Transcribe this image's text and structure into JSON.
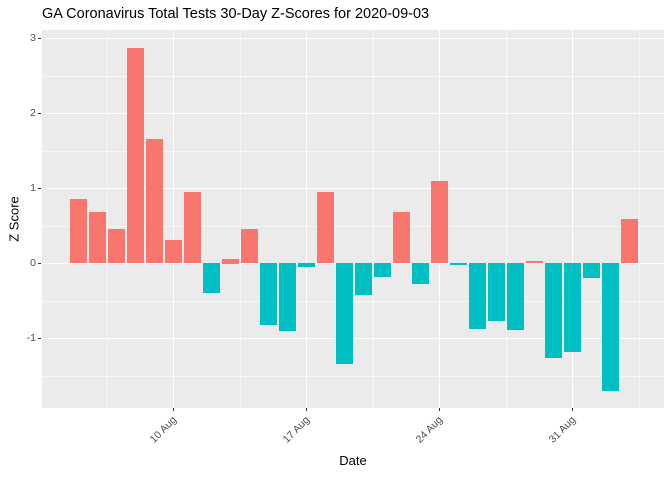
{
  "chart_data": {
    "type": "bar",
    "title": "GA Coronavirus Total Tests 30-Day Z-Scores for 2020-09-03",
    "xlabel": "Date",
    "ylabel": "Z Score",
    "x": [
      "2020-08-05",
      "2020-08-06",
      "2020-08-07",
      "2020-08-08",
      "2020-08-09",
      "2020-08-10",
      "2020-08-11",
      "2020-08-12",
      "2020-08-13",
      "2020-08-14",
      "2020-08-15",
      "2020-08-16",
      "2020-08-17",
      "2020-08-18",
      "2020-08-19",
      "2020-08-20",
      "2020-08-21",
      "2020-08-22",
      "2020-08-23",
      "2020-08-24",
      "2020-08-25",
      "2020-08-26",
      "2020-08-27",
      "2020-08-28",
      "2020-08-29",
      "2020-08-30",
      "2020-08-31",
      "2020-09-01",
      "2020-09-02",
      "2020-09-03"
    ],
    "values": [
      0.85,
      0.68,
      0.45,
      2.87,
      1.65,
      0.31,
      0.95,
      -0.4,
      0.06,
      0.45,
      -0.83,
      -0.91,
      -0.05,
      0.95,
      -1.34,
      -0.43,
      -0.19,
      0.68,
      -0.28,
      1.09,
      -0.03,
      -0.88,
      -0.77,
      -0.89,
      0.03,
      -1.27,
      -1.18,
      -0.2,
      -1.7,
      0.59
    ],
    "positive_color": "#F8766D",
    "negative_color": "#00BFC4",
    "panel_bg": "#EBEBEB",
    "grid_color": "#FFFFFF",
    "tick_text_color": "#4D4D4D",
    "ylim": [
      -1.93,
      3.11
    ],
    "yticks": [
      {
        "label": "3",
        "value": 3
      },
      {
        "label": "2",
        "value": 2
      },
      {
        "label": "1",
        "value": 1
      },
      {
        "label": "0",
        "value": 0
      },
      {
        "label": "-1",
        "value": -1
      }
    ],
    "yticks_minor": [
      2.5,
      1.5,
      0.5,
      -0.5,
      -1.5
    ],
    "xticks": [
      {
        "label": "10 Aug",
        "day": 5
      },
      {
        "label": "17 Aug",
        "day": 12
      },
      {
        "label": "24 Aug",
        "day": 19
      },
      {
        "label": "31 Aug",
        "day": 26
      }
    ],
    "xticks_minor_days": [
      1.5,
      8.5,
      15.5,
      22.5,
      29.5
    ],
    "legend": "none",
    "grid": true
  }
}
